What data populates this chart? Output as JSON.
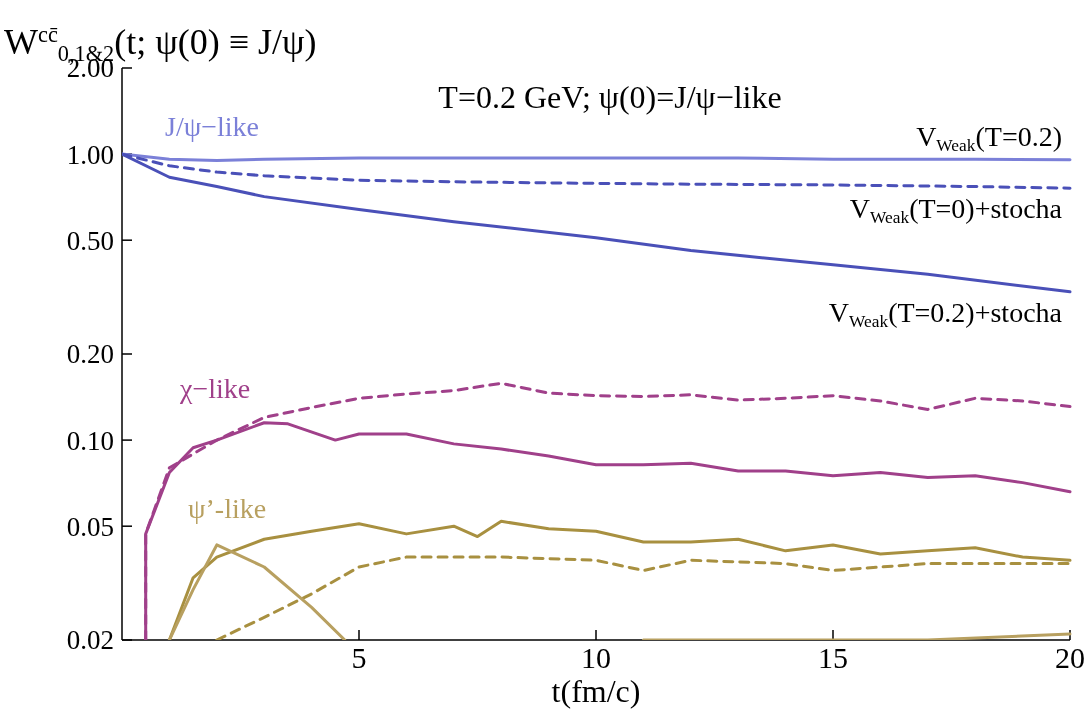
{
  "chart_data": {
    "type": "line",
    "title": "T=0.2 GeV; ψ(0)=J/ψ−like",
    "ylabel": "W$^{cc̄}$$_{0,1&2}$(t; ψ(0) ≡ J/ψ)",
    "xlabel": "t(fm/c)",
    "log": "y",
    "xlim": [
      0,
      20
    ],
    "xticks": [
      5,
      10,
      15,
      20
    ],
    "ylim": [
      0.02,
      2
    ],
    "yticks": [
      {
        "value": 0.02,
        "label": "0.02"
      },
      {
        "value": 0.05,
        "label": "0.05"
      },
      {
        "value": 0.1,
        "label": "0.10"
      },
      {
        "value": 0.2,
        "label": "0.20"
      },
      {
        "value": 0.5,
        "label": "0.50"
      },
      {
        "value": 1,
        "label": "1.00"
      },
      {
        "value": 2,
        "label": "2.00"
      }
    ],
    "grid": false,
    "marker": "none",
    "annotations": [
      "J/ψ−like",
      "χ−like",
      "ψ’-like"
    ],
    "series": [
      {
        "name": "V$_{Weak}$(T=0.2)",
        "color": "#7b80d8",
        "line_style": "solid",
        "x": [
          0,
          1,
          2,
          3,
          5,
          7,
          10,
          13,
          15,
          18,
          20
        ],
        "values": [
          1.0,
          0.96,
          0.95,
          0.96,
          0.97,
          0.97,
          0.97,
          0.97,
          0.96,
          0.96,
          0.955
        ]
      },
      {
        "name": "V$_{Weak}$(T=0)+stocha",
        "color": "#4a50b8",
        "line_style": "dashed",
        "x": [
          0,
          1,
          2,
          3,
          5,
          7,
          10,
          12,
          15,
          18,
          20
        ],
        "values": [
          1.0,
          0.91,
          0.865,
          0.84,
          0.81,
          0.8,
          0.79,
          0.785,
          0.78,
          0.77,
          0.76
        ]
      },
      {
        "name": "V$_{Weak}$(T=0.2)+stocha",
        "color": "#4a50b8",
        "line_style": "solid",
        "x": [
          0,
          1,
          2,
          3,
          5,
          7,
          10,
          12,
          15,
          17,
          20
        ],
        "values": [
          1.0,
          0.83,
          0.77,
          0.71,
          0.64,
          0.58,
          0.51,
          0.46,
          0.41,
          0.38,
          0.33
        ]
      },
      {
        "color": "#a0408a",
        "line_style": "solid",
        "x": [
          0.5,
          0.5,
          1,
          1.5,
          2,
          3,
          3.5,
          4.5,
          5,
          6,
          7,
          8,
          9,
          10,
          11,
          12,
          13,
          14,
          15,
          16,
          17,
          18,
          19,
          20
        ],
        "values": [
          0.02,
          0.047,
          0.077,
          0.094,
          0.1,
          0.115,
          0.114,
          0.1,
          0.105,
          0.105,
          0.097,
          0.093,
          0.088,
          0.082,
          0.082,
          0.083,
          0.078,
          0.078,
          0.075,
          0.077,
          0.074,
          0.075,
          0.071,
          0.066
        ]
      },
      {
        "color": "#a0408a",
        "line_style": "dashed",
        "x": [
          0.5,
          0.5,
          1,
          2,
          3,
          4,
          5,
          6,
          7,
          8,
          9,
          10,
          11,
          12,
          13,
          14,
          15,
          16,
          17,
          18,
          19,
          20
        ],
        "values": [
          0.02,
          0.047,
          0.08,
          0.1,
          0.12,
          0.13,
          0.14,
          0.145,
          0.149,
          0.158,
          0.146,
          0.143,
          0.142,
          0.144,
          0.138,
          0.14,
          0.143,
          0.137,
          0.128,
          0.14,
          0.137,
          0.131
        ]
      },
      {
        "color": "#a89040",
        "line_style": "solid",
        "x": [
          1,
          1.5,
          2,
          3,
          4,
          5,
          6,
          7,
          7.5,
          8,
          9,
          10,
          11,
          12,
          13,
          14,
          15,
          16,
          17,
          18,
          19,
          20
        ],
        "values": [
          0.02,
          0.033,
          0.039,
          0.045,
          0.048,
          0.051,
          0.047,
          0.05,
          0.046,
          0.052,
          0.049,
          0.048,
          0.044,
          0.044,
          0.045,
          0.041,
          0.043,
          0.04,
          0.041,
          0.042,
          0.039,
          0.038
        ]
      },
      {
        "color": "#a89040",
        "line_style": "dashed",
        "x": [
          2,
          3,
          4,
          5,
          6,
          8,
          10,
          11,
          12,
          14,
          15,
          17,
          20
        ],
        "values": [
          0.02,
          0.024,
          0.029,
          0.036,
          0.039,
          0.039,
          0.038,
          0.035,
          0.038,
          0.037,
          0.035,
          0.037,
          0.037
        ]
      },
      {
        "color": "#b8a060",
        "line_style": "solid",
        "x": [
          1,
          1.5,
          2,
          3,
          4,
          4.7,
          null,
          11,
          13,
          17,
          20
        ],
        "values": [
          0.02,
          0.03,
          0.043,
          0.036,
          0.026,
          0.02,
          null,
          0.02,
          0.02,
          0.02,
          0.021
        ]
      }
    ]
  }
}
